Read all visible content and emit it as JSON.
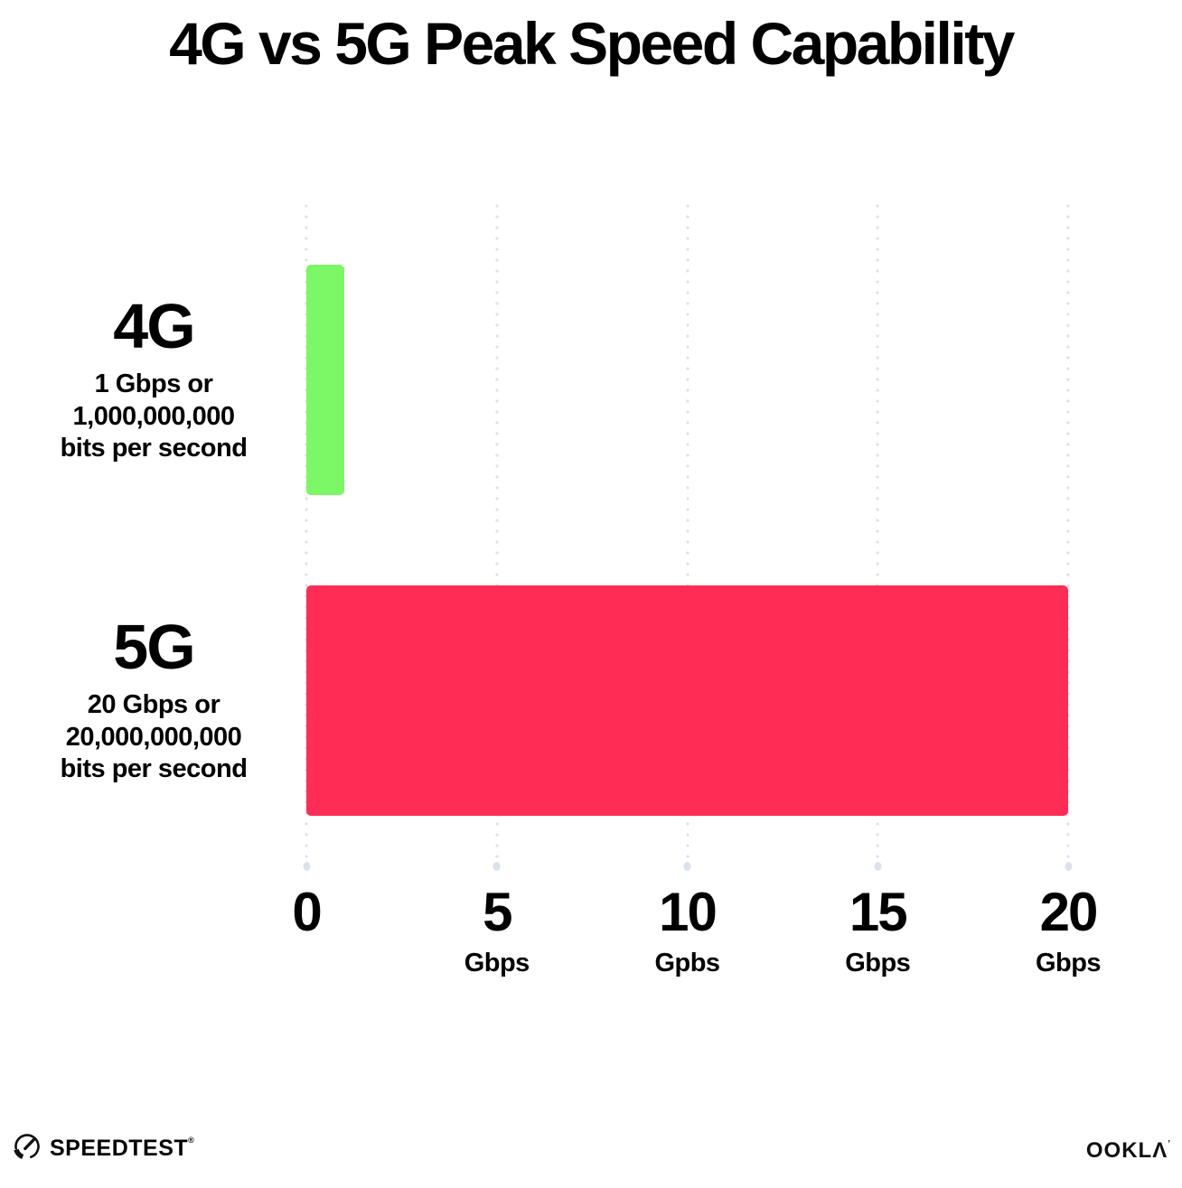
{
  "chart_data": {
    "type": "bar",
    "orientation": "horizontal",
    "title": "4G vs 5G Peak Speed Capability",
    "xlabel": "",
    "ylabel": "",
    "xlim": [
      0,
      20
    ],
    "grid": "dotted vertical gridlines at 0, 5, 10, 15, 20 Gbps",
    "legend": "none",
    "categories": [
      "4G",
      "5G"
    ],
    "values": [
      1,
      20
    ],
    "bars": [
      {
        "category": "4G",
        "value": 1,
        "color": "#7cf765",
        "sub_line_1": "1 Gbps or",
        "sub_line_2": "1,000,000,000",
        "sub_line_3": "bits per second"
      },
      {
        "category": "5G",
        "value": 20,
        "color": "#ff2d55",
        "sub_line_1": "20 Gbps or",
        "sub_line_2": "20,000,000,000",
        "sub_line_3": "bits per second"
      }
    ],
    "x_ticks": [
      {
        "label": "0",
        "unit": ""
      },
      {
        "label": "5",
        "unit": "Gbps"
      },
      {
        "label": "10",
        "unit": "Gpbs"
      },
      {
        "label": "15",
        "unit": "Gbps"
      },
      {
        "label": "20",
        "unit": "Gbps"
      }
    ]
  },
  "footer": {
    "speedtest_label": "SPEEDTEST",
    "speedtest_mark": "®",
    "ookla_label": "OOKL",
    "ookla_last_letter": "Λ",
    "ookla_mark": "’"
  },
  "colors": {
    "background": "#ffffff",
    "text": "#000000",
    "grid_dot": "#dfdfeb",
    "bar_4g": "#7cf765",
    "bar_5g": "#ff2d55"
  }
}
